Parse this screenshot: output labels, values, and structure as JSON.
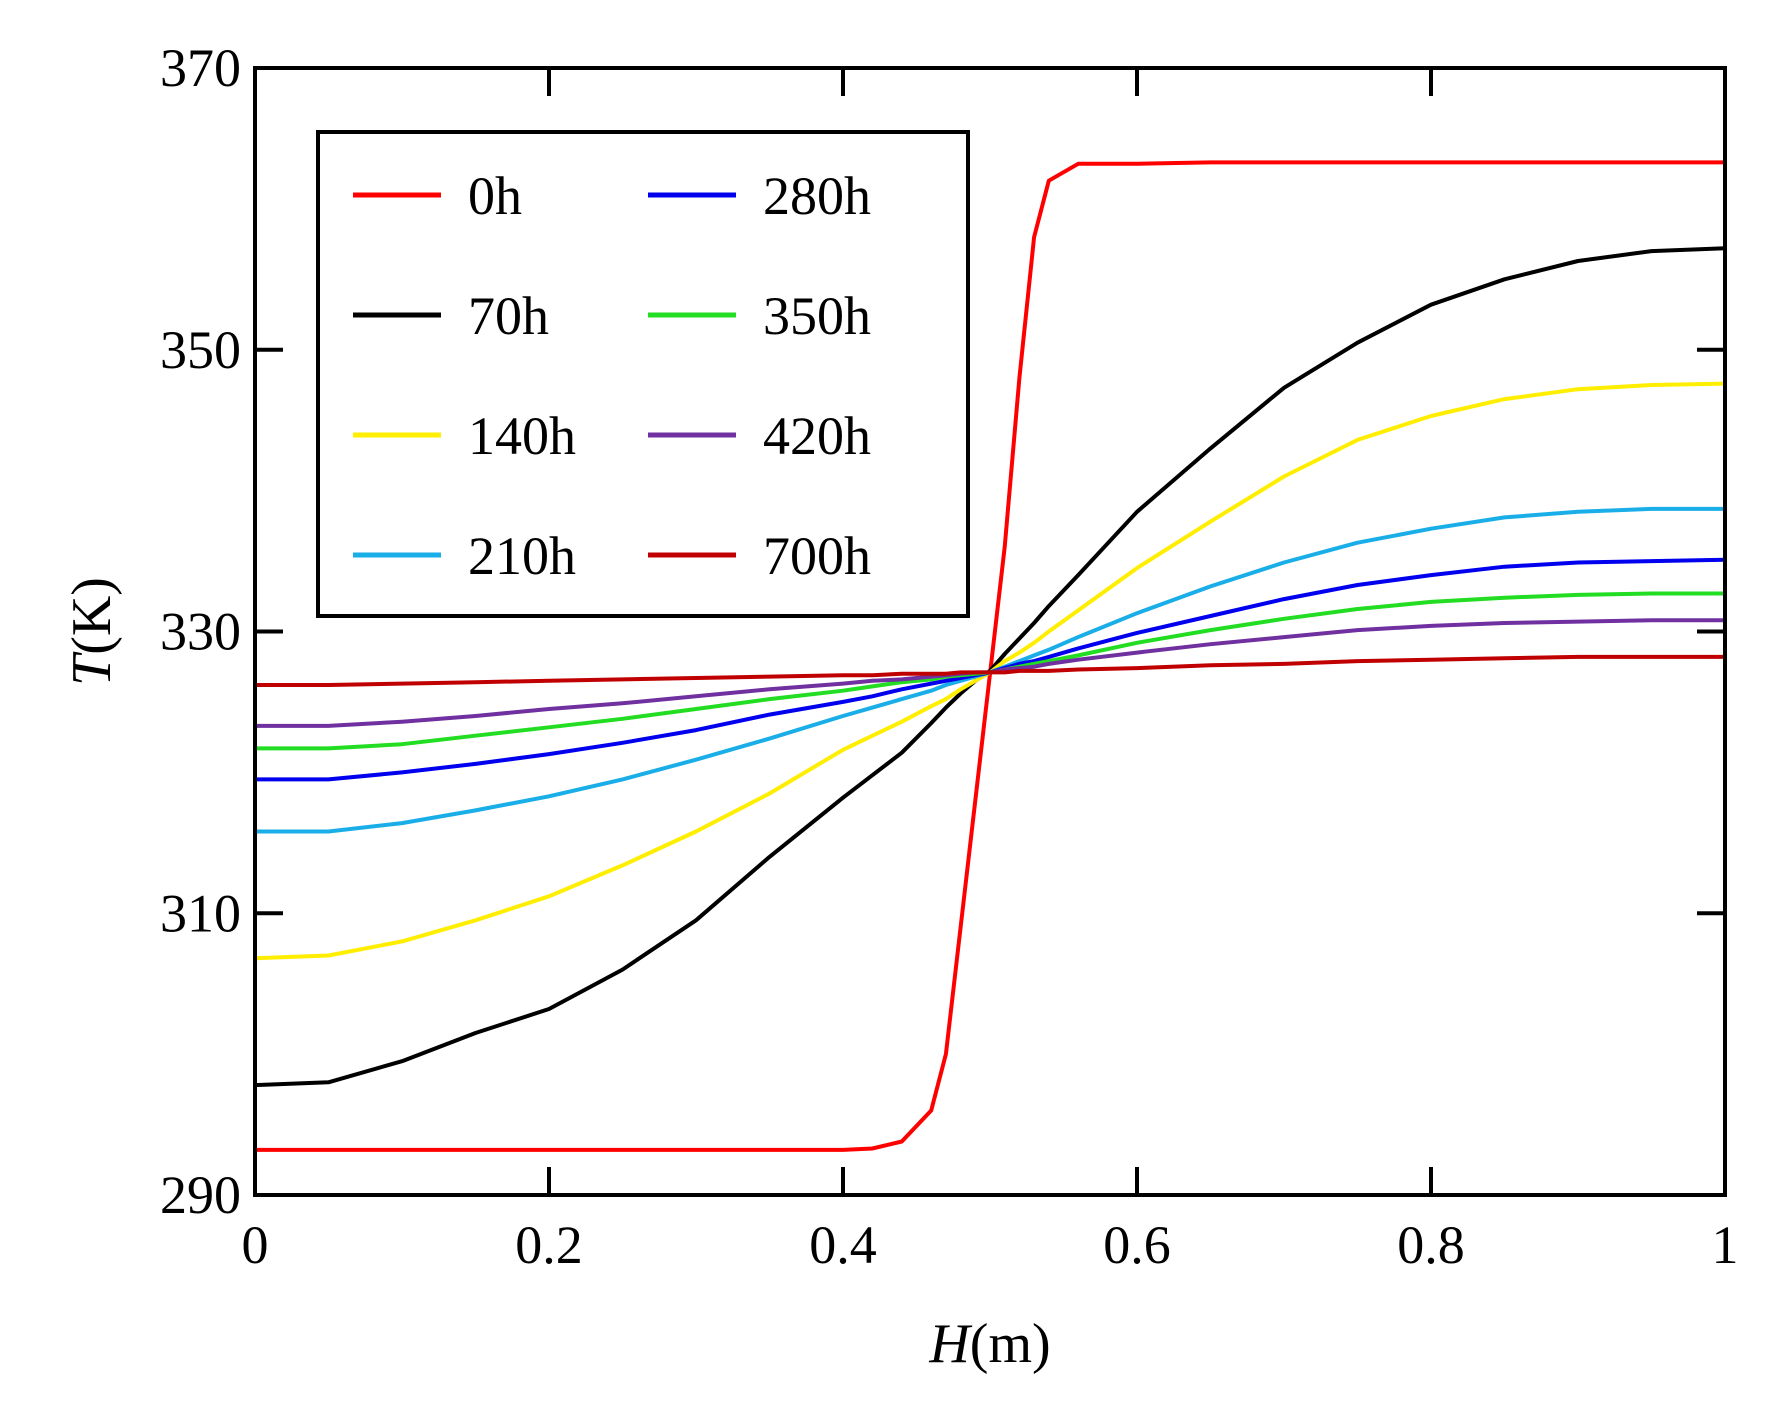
{
  "chart_data": {
    "type": "line",
    "title": "",
    "xlabel": {
      "var": "H",
      "unit": "(m)"
    },
    "ylabel": {
      "var": "T",
      "unit": "(K)"
    },
    "xlim": [
      0,
      1
    ],
    "ylim": [
      290,
      370
    ],
    "x_ticks": [
      0,
      0.2,
      0.4,
      0.6,
      0.8,
      1
    ],
    "x_tick_labels": [
      "0",
      "0.2",
      "0.4",
      "0.6",
      "0.8",
      "1"
    ],
    "y_ticks": [
      290,
      310,
      330,
      350,
      370
    ],
    "y_tick_labels": [
      "290",
      "310",
      "330",
      "350",
      "370"
    ],
    "grid": false,
    "legend": {
      "position": "top-left",
      "columns": 2
    },
    "x": [
      0,
      0.05,
      0.1,
      0.15,
      0.2,
      0.25,
      0.3,
      0.35,
      0.4,
      0.42,
      0.44,
      0.46,
      0.47,
      0.48,
      0.49,
      0.5,
      0.51,
      0.52,
      0.53,
      0.54,
      0.56,
      0.6,
      0.65,
      0.7,
      0.75,
      0.8,
      0.85,
      0.9,
      0.95,
      1
    ],
    "series": [
      {
        "name": "0h",
        "color": "#ff0000",
        "values": [
          293.2,
          293.2,
          293.2,
          293.2,
          293.2,
          293.2,
          293.2,
          293.2,
          293.2,
          293.3,
          293.8,
          296,
          300,
          309,
          318,
          327,
          336,
          348,
          358,
          362,
          363.2,
          363.2,
          363.3,
          363.3,
          363.3,
          363.3,
          363.3,
          363.3,
          363.3,
          363.3
        ]
      },
      {
        "name": "70h",
        "color": "#000000",
        "values": [
          297.8,
          298,
          299.5,
          301.5,
          303.2,
          306,
          309.5,
          314,
          318.2,
          319.8,
          321.4,
          323.5,
          324.6,
          325.6,
          326.5,
          327.2,
          328.4,
          329.5,
          330.6,
          331.8,
          334,
          338.5,
          343,
          347.3,
          350.5,
          353.2,
          355,
          356.3,
          357,
          357.2
        ]
      },
      {
        "name": "140h",
        "color": "#ffee00",
        "values": [
          306.8,
          307,
          308,
          309.5,
          311.2,
          313.4,
          315.8,
          318.5,
          321.6,
          322.6,
          323.6,
          324.7,
          325.2,
          325.9,
          326.5,
          327.1,
          327.9,
          328.5,
          329.2,
          330,
          331.5,
          334.5,
          337.8,
          341,
          343.6,
          345.3,
          346.5,
          347.2,
          347.5,
          347.6
        ]
      },
      {
        "name": "210h",
        "color": "#1aaee8",
        "values": [
          315.8,
          315.8,
          316.4,
          317.3,
          318.3,
          319.5,
          320.9,
          322.4,
          324,
          324.6,
          325.2,
          325.8,
          326.2,
          326.5,
          326.8,
          327.1,
          327.5,
          327.9,
          328.3,
          328.7,
          329.6,
          331.3,
          333.2,
          334.9,
          336.3,
          337.3,
          338.1,
          338.5,
          338.7,
          338.7
        ]
      },
      {
        "name": "280h",
        "color": "#0000ee",
        "values": [
          319.5,
          319.5,
          320,
          320.6,
          321.3,
          322.1,
          323,
          324.1,
          325,
          325.4,
          325.9,
          326.3,
          326.5,
          326.7,
          326.9,
          327.1,
          327.4,
          327.7,
          327.9,
          328.2,
          328.8,
          329.9,
          331.1,
          332.3,
          333.3,
          334,
          334.6,
          334.9,
          335,
          335.1
        ]
      },
      {
        "name": "350h",
        "color": "#22dd22",
        "values": [
          321.7,
          321.7,
          322,
          322.6,
          323.2,
          323.8,
          324.5,
          325.2,
          325.8,
          326.1,
          326.4,
          326.6,
          326.8,
          326.9,
          327,
          327.1,
          327.3,
          327.5,
          327.7,
          327.9,
          328.3,
          329.2,
          330.1,
          330.9,
          331.6,
          332.1,
          332.4,
          332.6,
          332.7,
          332.7
        ]
      },
      {
        "name": "420h",
        "color": "#7030a0",
        "values": [
          323.3,
          323.3,
          323.6,
          324,
          324.5,
          324.9,
          325.4,
          325.9,
          326.3,
          326.5,
          326.6,
          326.8,
          326.9,
          327,
          327.1,
          327.1,
          327.3,
          327.4,
          327.5,
          327.7,
          328,
          328.5,
          329.1,
          329.6,
          330.1,
          330.4,
          330.6,
          330.7,
          330.8,
          330.8
        ]
      },
      {
        "name": "700h",
        "color": "#c00000",
        "values": [
          326.2,
          326.2,
          326.3,
          326.4,
          326.5,
          326.6,
          326.7,
          326.8,
          326.9,
          326.9,
          327,
          327,
          327,
          327.1,
          327.1,
          327.1,
          327.1,
          327.2,
          327.2,
          327.2,
          327.3,
          327.4,
          327.6,
          327.7,
          327.9,
          328,
          328.1,
          328.2,
          328.2,
          328.2
        ]
      }
    ]
  }
}
